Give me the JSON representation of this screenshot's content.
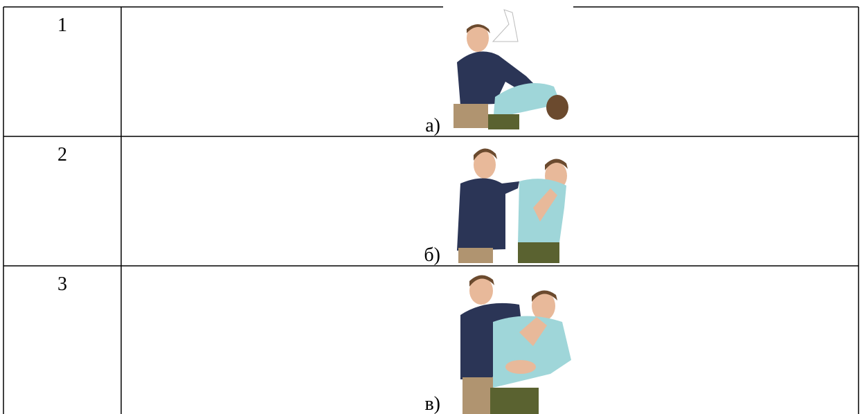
{
  "table": {
    "rows": [
      [
        "1",
        "а)"
      ],
      [
        "2",
        "б)"
      ],
      [
        "3",
        "в)"
      ]
    ]
  }
}
